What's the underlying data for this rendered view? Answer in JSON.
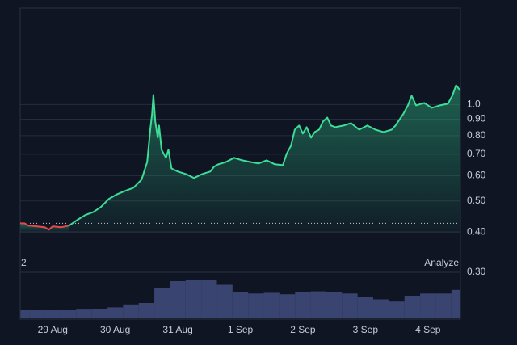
{
  "chart_data": [
    {
      "type": "line",
      "scale": "log",
      "grid": true,
      "baseline": 0.426,
      "x": [
        -0.52,
        -0.45,
        -0.39,
        -0.26,
        -0.13,
        -0.06,
        0,
        0.13,
        0.26,
        0.39,
        0.52,
        0.65,
        0.77,
        0.9,
        1.03,
        1.16,
        1.29,
        1.42,
        1.51,
        1.56,
        1.59,
        1.61,
        1.64,
        1.68,
        1.7,
        1.74,
        1.81,
        1.85,
        1.9,
        2,
        2.13,
        2.26,
        2.39,
        2.52,
        2.58,
        2.65,
        2.77,
        2.9,
        3.03,
        3.16,
        3.29,
        3.42,
        3.55,
        3.68,
        3.74,
        3.81,
        3.87,
        3.94,
        4,
        4.06,
        4.13,
        4.19,
        4.26,
        4.32,
        4.39,
        4.45,
        4.52,
        4.65,
        4.77,
        4.9,
        5.03,
        5.16,
        5.29,
        5.42,
        5.48,
        5.55,
        5.61,
        5.68,
        5.74,
        5.81,
        5.94,
        6.06,
        6.19,
        6.32,
        6.39,
        6.45,
        6.52
      ],
      "series": [
        {
          "color": "#e5484d",
          "values": [
            0.426,
            0.426,
            0.419,
            0.417,
            0.414,
            0.407,
            0.417,
            0.414,
            0.419,
            null,
            null,
            null,
            null,
            null,
            null,
            null,
            null,
            null,
            null,
            null,
            null,
            null,
            null,
            null,
            null,
            null,
            null,
            null,
            null,
            null,
            null,
            null,
            null,
            null,
            null,
            null,
            null,
            null,
            null,
            null,
            null,
            null,
            null,
            null,
            null,
            null,
            null,
            null,
            null,
            null,
            null,
            null,
            null,
            null,
            null,
            null,
            null,
            null,
            null,
            null,
            null,
            null,
            null,
            null,
            null,
            null,
            null,
            null,
            null,
            null,
            null,
            null,
            null,
            null,
            null,
            null,
            null
          ]
        },
        {
          "color": "#3ddc97",
          "values": [
            null,
            null,
            null,
            null,
            null,
            null,
            null,
            null,
            0.419,
            0.436,
            0.452,
            0.462,
            0.479,
            0.508,
            0.525,
            0.538,
            0.55,
            0.583,
            0.662,
            0.835,
            0.938,
            1.072,
            0.885,
            0.788,
            0.86,
            0.723,
            0.682,
            0.723,
            0.632,
            0.618,
            0.607,
            0.59,
            0.607,
            0.618,
            0.64,
            0.651,
            0.662,
            0.682,
            0.67,
            0.662,
            0.655,
            0.67,
            0.651,
            0.647,
            0.702,
            0.744,
            0.835,
            0.86,
            0.812,
            0.85,
            0.788,
            0.821,
            0.835,
            0.885,
            0.911,
            0.86,
            0.85,
            0.86,
            0.875,
            0.835,
            0.86,
            0.835,
            0.821,
            0.835,
            0.86,
            0.901,
            0.938,
            0.994,
            1.066,
            0.994,
            1.012,
            0.977,
            0.994,
            1.006,
            1.066,
            1.149,
            1.104
          ]
        }
      ],
      "xlim": [
        -0.52,
        6.52
      ],
      "xticks": [
        {
          "value": 0,
          "label": "29 Aug"
        },
        {
          "value": 1,
          "label": "30 Aug"
        },
        {
          "value": 2,
          "label": "31 Aug"
        },
        {
          "value": 3,
          "label": "1 Sep"
        },
        {
          "value": 4,
          "label": "2 Sep"
        },
        {
          "value": 5,
          "label": "3 Sep"
        },
        {
          "value": 6,
          "label": "4 Sep"
        }
      ],
      "ylim": [
        0.214,
        2.0
      ],
      "yticks": [
        {
          "value": 1,
          "label": "1.0"
        },
        {
          "value": 0.9,
          "label": "0.90"
        },
        {
          "value": 0.8,
          "label": "0.80"
        },
        {
          "value": 0.7,
          "label": "0.70"
        },
        {
          "value": 0.6,
          "label": "0.60"
        },
        {
          "value": 0.5,
          "label": "0.50"
        },
        {
          "value": 0.4,
          "label": "0.40"
        },
        {
          "value": 0.3,
          "label": "0.30"
        }
      ]
    },
    {
      "type": "bar",
      "pane_label": "2",
      "action_label": "Analyze",
      "color": "#3a4470",
      "x": [
        -0.5,
        -0.25,
        0,
        0.25,
        0.5,
        0.75,
        1,
        1.25,
        1.5,
        1.75,
        2,
        2.25,
        2.5,
        2.75,
        3,
        3.25,
        3.5,
        3.75,
        4,
        4.25,
        4.5,
        4.75,
        5,
        5.25,
        5.5,
        5.75,
        6,
        6.25,
        6.5
      ],
      "values": [
        10,
        10,
        10,
        10,
        11,
        12,
        14,
        18,
        20,
        40,
        50,
        52,
        52,
        45,
        35,
        33,
        34,
        32,
        35,
        36,
        35,
        33,
        28,
        25,
        22,
        30,
        33,
        33,
        38
      ],
      "xlim": [
        -0.52,
        6.52
      ],
      "ylim": [
        0,
        60
      ]
    }
  ]
}
